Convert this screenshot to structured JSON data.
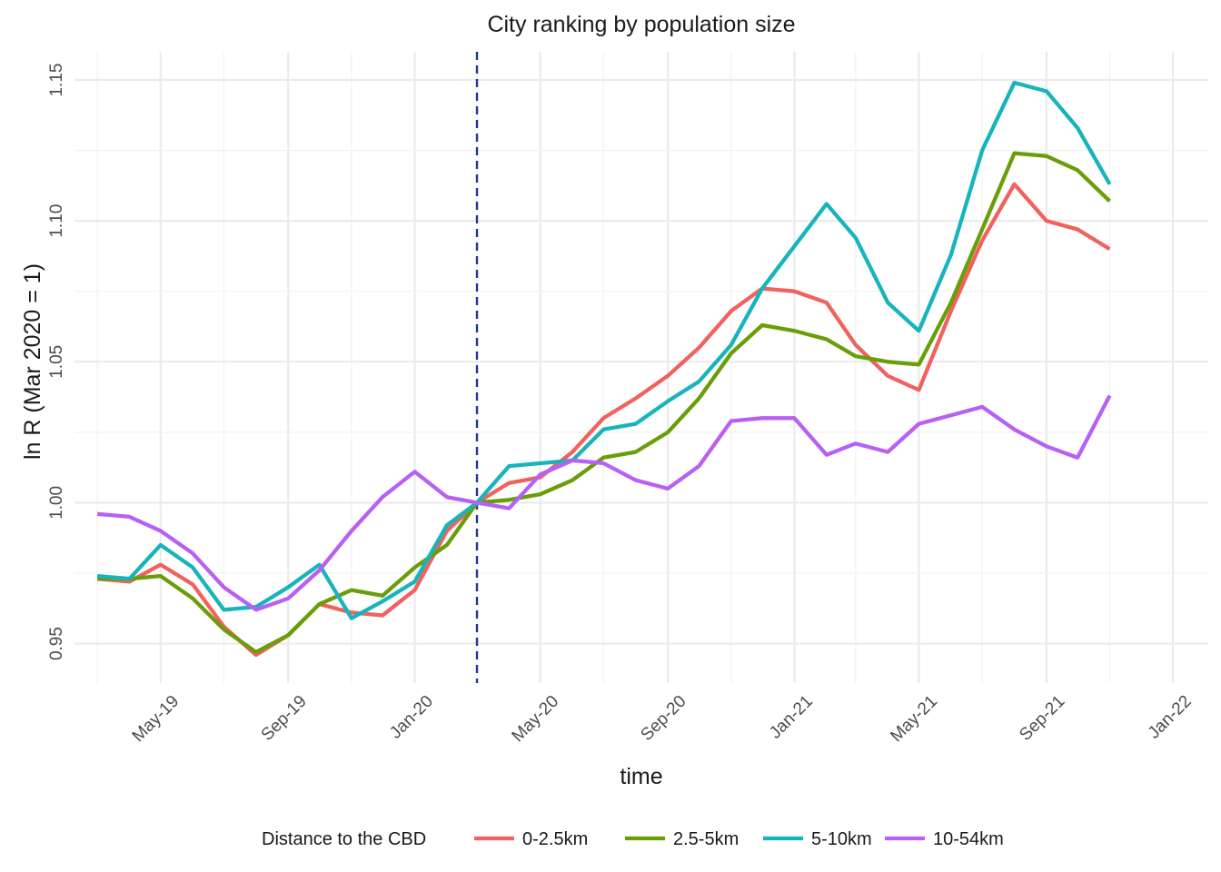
{
  "chart_data": {
    "type": "line",
    "title": "City ranking by population size",
    "xlabel": "time",
    "ylabel": "ln R (Mar 2020 = 1)",
    "x_ticks": [
      "May-19",
      "Sep-19",
      "Jan-20",
      "May-20",
      "Sep-20",
      "Jan-21",
      "May-21",
      "Sep-21",
      "Jan-22"
    ],
    "y_ticks": [
      "0.95",
      "1.00",
      "1.05",
      "1.10",
      "1.15"
    ],
    "ylim": [
      0.936,
      1.16
    ],
    "xlim": [
      "2019-02-07",
      "2022-02-04"
    ],
    "grid": true,
    "reference_line": {
      "x": "2020-03",
      "style": "dashed",
      "color": "#1f3a93"
    },
    "legend": {
      "title": "Distance to the CBD",
      "position": "bottom"
    },
    "x": [
      "2019-03",
      "2019-04",
      "2019-05",
      "2019-06",
      "2019-07",
      "2019-08",
      "2019-09",
      "2019-10",
      "2019-11",
      "2019-12",
      "2020-01",
      "2020-02",
      "2020-03",
      "2020-04",
      "2020-05",
      "2020-06",
      "2020-07",
      "2020-08",
      "2020-09",
      "2020-10",
      "2020-11",
      "2020-12",
      "2021-01",
      "2021-02",
      "2021-03",
      "2021-04",
      "2021-05",
      "2021-06",
      "2021-07",
      "2021-08",
      "2021-09",
      "2021-10",
      "2021-11"
    ],
    "series": [
      {
        "name": "0-2.5km",
        "color": "#F0625F",
        "values": [
          0.973,
          0.972,
          0.978,
          0.971,
          0.956,
          0.946,
          0.953,
          0.964,
          0.961,
          0.96,
          0.969,
          0.99,
          1.0,
          1.007,
          1.009,
          1.018,
          1.03,
          1.037,
          1.045,
          1.055,
          1.068,
          1.076,
          1.075,
          1.071,
          1.056,
          1.045,
          1.04,
          1.068,
          1.093,
          1.113,
          1.1,
          1.097,
          1.09
        ]
      },
      {
        "name": "2.5-5km",
        "color": "#6A9E08",
        "values": [
          0.973,
          0.973,
          0.974,
          0.966,
          0.955,
          0.947,
          0.953,
          0.964,
          0.969,
          0.967,
          0.977,
          0.985,
          1.0,
          1.001,
          1.003,
          1.008,
          1.016,
          1.018,
          1.025,
          1.037,
          1.053,
          1.063,
          1.061,
          1.058,
          1.052,
          1.05,
          1.049,
          1.071,
          1.097,
          1.124,
          1.123,
          1.118,
          1.107
        ]
      },
      {
        "name": "5-10km",
        "color": "#17B4BC",
        "values": [
          0.974,
          0.973,
          0.985,
          0.977,
          0.962,
          0.963,
          0.97,
          0.978,
          0.959,
          0.965,
          0.972,
          0.992,
          1.0,
          1.013,
          1.014,
          1.015,
          1.026,
          1.028,
          1.036,
          1.043,
          1.056,
          1.076,
          1.091,
          1.106,
          1.094,
          1.071,
          1.061,
          1.088,
          1.125,
          1.149,
          1.146,
          1.133,
          1.113
        ]
      },
      {
        "name": "10-54km",
        "color": "#B860F4",
        "values": [
          0.996,
          0.995,
          0.99,
          0.982,
          0.97,
          0.962,
          0.966,
          0.976,
          0.99,
          1.002,
          1.011,
          1.002,
          1.0,
          0.998,
          1.01,
          1.015,
          1.014,
          1.008,
          1.005,
          1.013,
          1.029,
          1.03,
          1.03,
          1.017,
          1.021,
          1.018,
          1.028,
          1.031,
          1.034,
          1.026,
          1.02,
          1.016,
          1.038
        ]
      }
    ]
  }
}
